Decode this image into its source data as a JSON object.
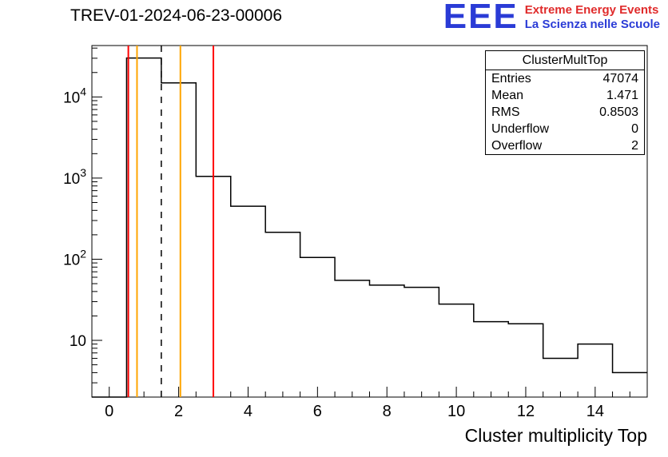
{
  "header": {
    "title": "TREV-01-2024-06-23-00006",
    "logo": {
      "acronym": "EEE",
      "line1": "Extreme Energy Events",
      "line2": "La Scienza nelle Scuole"
    }
  },
  "stats": {
    "title": "ClusterMultTop",
    "rows": [
      {
        "label": "Entries",
        "value": "47074"
      },
      {
        "label": "Mean",
        "value": "1.471"
      },
      {
        "label": "RMS",
        "value": "0.8503"
      },
      {
        "label": "Underflow",
        "value": "0"
      },
      {
        "label": "Overflow",
        "value": "2"
      }
    ]
  },
  "chart_data": {
    "type": "bar",
    "subtype": "step-histogram",
    "title": "TREV-01-2024-06-23-00006",
    "xlabel": "Cluster multiplicity Top",
    "ylabel": "",
    "yscale": "log",
    "grid": false,
    "legend": false,
    "xlim": [
      -0.5,
      15.5
    ],
    "ylim": [
      2,
      43000
    ],
    "bin_width": 1,
    "x_bin_centers": [
      0,
      1,
      2,
      3,
      4,
      5,
      6,
      7,
      8,
      9,
      10,
      11,
      12,
      13,
      14,
      15
    ],
    "values": [
      0,
      30200,
      14900,
      1050,
      450,
      215,
      105,
      55,
      48,
      45,
      28,
      17,
      16,
      6,
      9,
      4
    ],
    "x_major_ticks": [
      0,
      2,
      4,
      6,
      8,
      10,
      12,
      14
    ],
    "y_major_ticks": [
      10,
      100,
      1000,
      10000
    ],
    "line_color": "#000000",
    "markers": [
      {
        "x": 0.55,
        "color": "#ff0000",
        "style": "solid",
        "name": "red-marker-low"
      },
      {
        "x": 0.8,
        "color": "#ffa500",
        "style": "solid",
        "name": "orange-marker-low"
      },
      {
        "x": 1.5,
        "color": "#000000",
        "style": "dashed",
        "name": "dashed-mean-marker"
      },
      {
        "x": 2.05,
        "color": "#ffa500",
        "style": "solid",
        "name": "orange-marker-high"
      },
      {
        "x": 3.0,
        "color": "#ff0000",
        "style": "solid",
        "name": "red-marker-high"
      }
    ],
    "stats_box": {
      "title": "ClusterMultTop",
      "entries": 47074,
      "mean": 1.471,
      "rms": 0.8503,
      "underflow": 0,
      "overflow": 2
    }
  },
  "colors": {
    "logo_blue": "#2a3bd6",
    "logo_red": "#e02b2b",
    "histogram": "#000000",
    "background": "#ffffff"
  }
}
